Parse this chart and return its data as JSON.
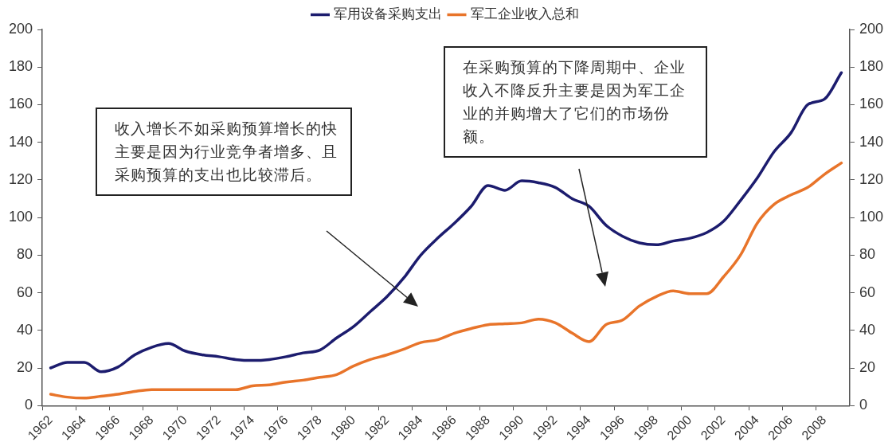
{
  "chart_data": {
    "type": "line",
    "categories": [
      "1962",
      null,
      "1964",
      null,
      "1966",
      null,
      "1968",
      null,
      "1970",
      null,
      "1972",
      null,
      "1974",
      null,
      "1976",
      null,
      "1978",
      null,
      "1980",
      null,
      "1982",
      null,
      "1984",
      null,
      "1986",
      null,
      "1988",
      null,
      "1990",
      null,
      "1992",
      null,
      "1994",
      null,
      "1996",
      null,
      "1998",
      null,
      "2000",
      null,
      "2002",
      null,
      "2004",
      null,
      "2006",
      null,
      "2008",
      null
    ],
    "series": [
      {
        "name": "军用设备采购支出",
        "color": "#1c1c6e",
        "values": [
          20,
          23,
          23,
          18,
          20.5,
          27,
          31,
          33,
          29,
          27,
          26,
          24.5,
          24,
          24.5,
          26,
          28,
          29.5,
          36,
          42,
          50,
          58,
          68,
          80,
          89,
          97,
          106,
          117,
          114.5,
          119.5,
          118.5,
          116,
          110,
          106,
          96,
          90,
          86.5,
          85.5,
          87.5,
          89,
          92,
          98,
          109,
          121,
          135,
          145,
          160,
          163,
          177
        ]
      },
      {
        "name": "军工企业收入总和",
        "color": "#e8742a",
        "values": [
          6,
          4.5,
          4,
          5,
          6,
          7.5,
          8.5,
          8.5,
          8.5,
          8.5,
          8.5,
          8.5,
          10.5,
          11,
          12.5,
          13.5,
          15,
          16.5,
          21,
          24.5,
          27,
          30,
          33.5,
          35,
          38.5,
          41,
          43,
          43.5,
          44,
          46,
          44,
          38.5,
          34,
          43,
          45.5,
          53,
          58,
          61,
          59.5,
          59.5,
          68.5,
          80,
          97,
          107,
          112,
          116,
          123,
          129
        ]
      }
    ],
    "ylim": [
      0,
      200
    ],
    "yticks": [
      0,
      20,
      40,
      60,
      80,
      100,
      120,
      140,
      160,
      180,
      200
    ],
    "y2lim": [
      0,
      200
    ],
    "y2ticks": [
      0,
      20,
      40,
      60,
      80,
      100,
      120,
      140,
      160,
      180,
      200
    ],
    "grid": false,
    "legend": "top",
    "marker": "none",
    "line_style": "solid",
    "annotations": [
      "收入增长不如采购预算增长的快主要是因为行业竞争者增多、且采购预算的支出也比较滞后。",
      "在采购预算的下降周期中、企业收入不降反升主要是因为军工企业的并购增大了它们的市场份额。"
    ]
  }
}
